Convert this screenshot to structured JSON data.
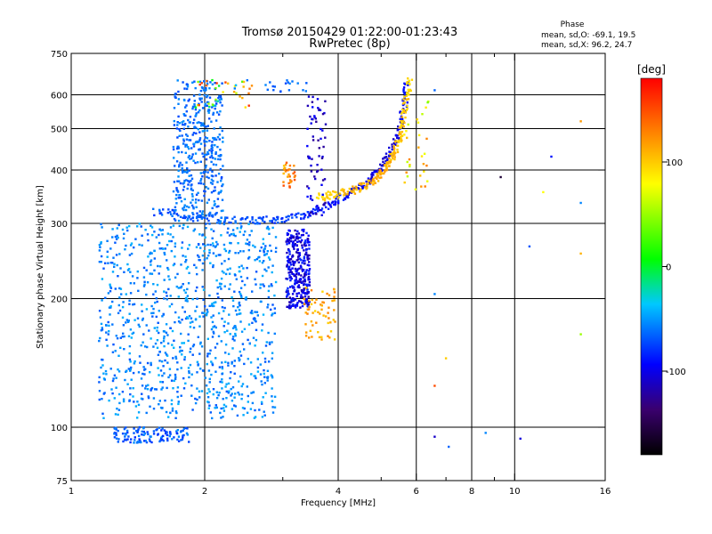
{
  "header": {
    "title_line1": "Tromsø 20150429 01:22:00-01:23:43",
    "title_line2": "RwPretec (8p)"
  },
  "phase_box": {
    "heading": "Phase",
    "line_O": "mean, sd,O: -69.1, 19.5",
    "line_X": "mean, sd,X:  96.2, 24.7"
  },
  "colorbar": {
    "unit_label": "[deg]",
    "tick_labels": [
      "100",
      "0",
      "-100"
    ],
    "tick_values": [
      100,
      0,
      -100
    ],
    "range": [
      -180,
      180
    ]
  },
  "chart_data": {
    "type": "scatter",
    "title": "Tromsø 20150429 01:22:00-01:23:43",
    "subtitle": "RwPretec (8p)",
    "xlabel": "Frequency [MHz]",
    "ylabel": "Stationary phase Virtual Height [km]",
    "x_scale": "log",
    "y_scale": "log",
    "xlim": [
      1,
      16
    ],
    "ylim": [
      75,
      750
    ],
    "x_ticks": [
      1,
      2,
      4,
      6,
      8,
      10,
      16
    ],
    "x_tick_labels": [
      "1",
      "2",
      "4",
      "6",
      "8",
      "10",
      "16"
    ],
    "x_minor_ticks": [
      3,
      5,
      7,
      9
    ],
    "y_ticks": [
      75,
      100,
      200,
      300,
      400,
      500,
      600,
      750
    ],
    "y_tick_labels": [
      "75",
      "100",
      "200",
      "300",
      "400",
      "500",
      "600",
      "750"
    ],
    "grid_x": [
      2,
      4,
      6,
      8,
      10
    ],
    "grid_y": [
      100,
      200,
      300,
      400,
      500,
      600
    ],
    "color_by": "phase [deg]",
    "traces": [
      {
        "x": [
          1.55,
          1.75,
          2.0,
          2.3,
          2.6,
          2.9,
          3.2,
          3.5,
          3.8,
          4.1,
          4.4,
          4.7,
          5.0,
          5.2,
          5.4,
          5.55,
          5.65,
          5.72
        ],
        "y": [
          320,
          315,
          310,
          306,
          305,
          306,
          310,
          318,
          330,
          345,
          362,
          380,
          405,
          430,
          470,
          520,
          580,
          640
        ],
        "phase": [
          -75,
          -75,
          -72,
          -72,
          -75,
          -78,
          -82,
          -88,
          -95,
          -100,
          -105,
          -108,
          -110,
          -110,
          -108,
          -105,
          -100,
          -95
        ]
      },
      {
        "x": [
          3.6,
          3.9,
          4.2,
          4.5,
          4.8,
          5.0,
          5.2,
          5.35,
          5.5,
          5.62,
          5.72,
          5.8
        ],
        "y": [
          345,
          350,
          355,
          365,
          375,
          390,
          410,
          440,
          480,
          530,
          590,
          650
        ],
        "phase": [
          95,
          100,
          105,
          110,
          112,
          115,
          110,
          108,
          105,
          100,
          98,
          95
        ]
      }
    ],
    "clusters": [
      {
        "x": [
          1.7,
          2.2
        ],
        "y": [
          300,
          650
        ],
        "n": 420,
        "phase": [
          -80,
          -55
        ]
      },
      {
        "x": [
          1.15,
          2.9
        ],
        "y": [
          105,
          300
        ],
        "n": 1000,
        "phase": [
          -75,
          -45
        ]
      },
      {
        "x": [
          1.25,
          1.85
        ],
        "y": [
          92,
          100
        ],
        "n": 120,
        "phase": [
          -90,
          -55
        ]
      },
      {
        "x": [
          3.05,
          3.45
        ],
        "y": [
          190,
          290
        ],
        "n": 320,
        "phase": [
          -125,
          -85
        ]
      },
      {
        "x": [
          3.35,
          3.95
        ],
        "y": [
          160,
          215
        ],
        "n": 60,
        "phase": [
          95,
          130
        ]
      },
      {
        "x": [
          3.4,
          3.75
        ],
        "y": [
          310,
          600
        ],
        "n": 70,
        "phase": [
          -130,
          -95
        ]
      },
      {
        "x": [
          3.0,
          3.2
        ],
        "y": [
          360,
          420
        ],
        "n": 30,
        "phase": [
          100,
          150
        ]
      },
      {
        "x": [
          1.9,
          2.6
        ],
        "y": [
          560,
          650
        ],
        "n": 40,
        "phase": [
          -70,
          160
        ]
      },
      {
        "x": [
          2.7,
          3.4
        ],
        "y": [
          610,
          650
        ],
        "n": 18,
        "phase": [
          -80,
          -60
        ]
      },
      {
        "x": [
          5.6,
          6.4
        ],
        "y": [
          350,
          600
        ],
        "n": 30,
        "phase": [
          40,
          130
        ]
      }
    ],
    "scattered_points": [
      {
        "x": 6.6,
        "y": 615,
        "phase": -70
      },
      {
        "x": 6.6,
        "y": 95,
        "phase": -115
      },
      {
        "x": 6.6,
        "y": 125,
        "phase": 150
      },
      {
        "x": 6.6,
        "y": 205,
        "phase": -60
      },
      {
        "x": 7.0,
        "y": 145,
        "phase": 100
      },
      {
        "x": 7.1,
        "y": 90,
        "phase": -70
      },
      {
        "x": 8.6,
        "y": 97,
        "phase": -60
      },
      {
        "x": 9.3,
        "y": 385,
        "phase": -160
      },
      {
        "x": 10.3,
        "y": 94,
        "phase": -110
      },
      {
        "x": 10.8,
        "y": 265,
        "phase": -75
      },
      {
        "x": 11.6,
        "y": 355,
        "phase": 80
      },
      {
        "x": 12.1,
        "y": 430,
        "phase": -95
      },
      {
        "x": 14.1,
        "y": 520,
        "phase": 120
      },
      {
        "x": 14.1,
        "y": 335,
        "phase": -60
      },
      {
        "x": 14.1,
        "y": 255,
        "phase": 110
      },
      {
        "x": 14.1,
        "y": 165,
        "phase": 50
      }
    ]
  },
  "colors": {
    "grid": "#000000",
    "colorbar_stops": [
      "#000000",
      "#3a006e",
      "#0000ff",
      "#00c8ff",
      "#00ff00",
      "#ffff00",
      "#ff7f00",
      "#ff0000"
    ]
  }
}
